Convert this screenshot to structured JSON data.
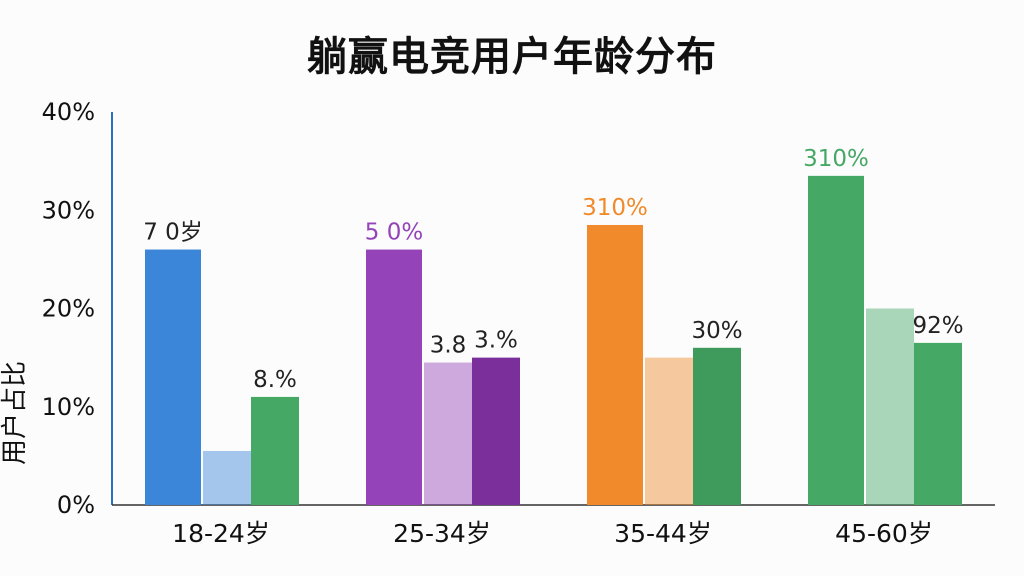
{
  "chart_data": {
    "type": "bar",
    "title": "躺赢电竞用户年龄分布",
    "ylabel": "用户占比",
    "ylim": [
      0,
      40
    ],
    "yticks": [
      "0%",
      "10%",
      "20%",
      "30%",
      "40%"
    ],
    "categories": [
      "18-24岁",
      "25-34岁",
      "35-44岁",
      "45-60岁"
    ],
    "groups": [
      {
        "category": "18-24岁",
        "color": "#3b86d9",
        "values": [
          26,
          5.5,
          11
        ],
        "labels": [
          "7 0岁",
          "",
          "8.%"
        ]
      },
      {
        "category": "25-34岁",
        "color": "#9444b8",
        "values": [
          26,
          14.5,
          15
        ],
        "labels": [
          "5 0%",
          "3.8",
          "3.%"
        ]
      },
      {
        "category": "35-44岁",
        "color": "#f08a2a",
        "values": [
          28.5,
          15,
          16
        ],
        "labels": [
          "310%",
          "",
          "30%"
        ]
      },
      {
        "category": "45-60岁",
        "color": "#45a865",
        "values": [
          33.5,
          20,
          16.5
        ],
        "labels": [
          "310%",
          "",
          "92%"
        ]
      }
    ],
    "grid": false,
    "legend": "none"
  }
}
